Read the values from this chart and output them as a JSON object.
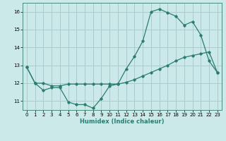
{
  "xlabel": "Humidex (Indice chaleur)",
  "bg_color": "#cce9e9",
  "grid_color": "#aacccc",
  "line_color": "#2a7d6f",
  "xlim": [
    -0.5,
    23.5
  ],
  "ylim": [
    10.5,
    16.5
  ],
  "yticks": [
    11,
    12,
    13,
    14,
    15,
    16
  ],
  "xticks": [
    0,
    1,
    2,
    3,
    4,
    5,
    6,
    7,
    8,
    9,
    10,
    11,
    12,
    13,
    14,
    15,
    16,
    17,
    18,
    19,
    20,
    21,
    22,
    23
  ],
  "series1_x": [
    0,
    1,
    2,
    3,
    4,
    5,
    6,
    7,
    8,
    9,
    10,
    11,
    12,
    13,
    14,
    15,
    16,
    17,
    18,
    19,
    20,
    21,
    22,
    23
  ],
  "series1_y": [
    12.9,
    12.0,
    12.0,
    11.85,
    11.85,
    11.95,
    11.95,
    11.95,
    11.95,
    11.95,
    11.95,
    11.95,
    12.05,
    12.2,
    12.4,
    12.6,
    12.8,
    13.0,
    13.25,
    13.45,
    13.55,
    13.65,
    13.75,
    12.6
  ],
  "series2_x": [
    0,
    1,
    2,
    3,
    4,
    5,
    6,
    7,
    8,
    9,
    10,
    11,
    12,
    13,
    14,
    15,
    16,
    17,
    18,
    19,
    20,
    21,
    22,
    23
  ],
  "series2_y": [
    12.9,
    12.0,
    11.6,
    11.75,
    11.75,
    10.95,
    10.8,
    10.8,
    10.6,
    11.15,
    11.85,
    11.95,
    12.8,
    13.5,
    14.35,
    16.0,
    16.15,
    15.95,
    15.75,
    15.25,
    15.45,
    14.7,
    13.25,
    12.6
  ]
}
